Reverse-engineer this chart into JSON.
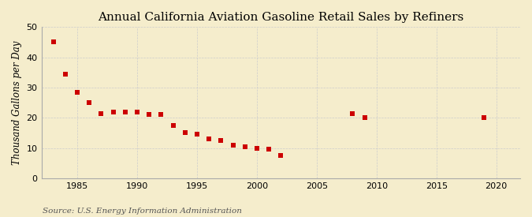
{
  "title": "Annual California Aviation Gasoline Retail Sales by Refiners",
  "ylabel": "Thousand Gallons per Day",
  "source": "Source: U.S. Energy Information Administration",
  "years": [
    1983,
    1984,
    1985,
    1986,
    1987,
    1988,
    1989,
    1990,
    1991,
    1992,
    1993,
    1994,
    1995,
    1996,
    1997,
    1998,
    1999,
    2000,
    2001,
    2002,
    2008,
    2009,
    2019
  ],
  "values": [
    45,
    34.5,
    28.5,
    25,
    21.5,
    22,
    22,
    22,
    21,
    21,
    17.5,
    15,
    14.5,
    13,
    12.5,
    11,
    10.5,
    10,
    9.5,
    7.5,
    21.5,
    20,
    20
  ],
  "xlim": [
    1982,
    2022
  ],
  "ylim": [
    0,
    50
  ],
  "xticks": [
    1985,
    1990,
    1995,
    2000,
    2005,
    2010,
    2015,
    2020
  ],
  "yticks": [
    0,
    10,
    20,
    30,
    40,
    50
  ],
  "marker_color": "#cc0000",
  "marker": "s",
  "marker_size": 16,
  "background_color": "#f5edcc",
  "grid_color": "#cccccc",
  "title_fontsize": 11,
  "label_fontsize": 8.5,
  "tick_fontsize": 8,
  "source_fontsize": 7.5
}
